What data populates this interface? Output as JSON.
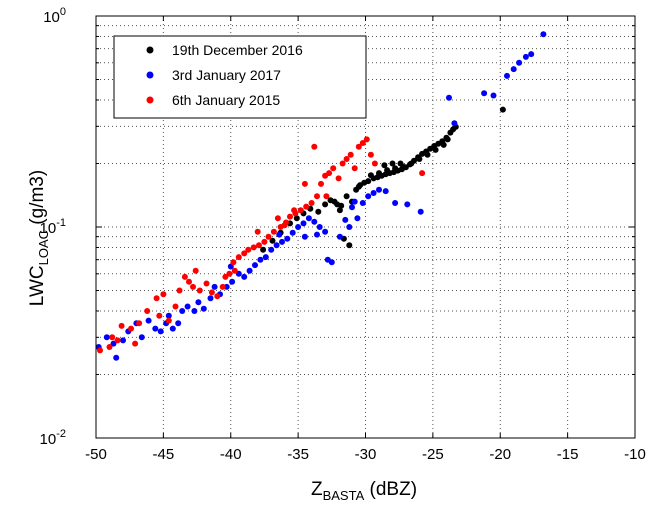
{
  "chart_data": {
    "type": "scatter",
    "title": "",
    "xlabel": {
      "main": "Z",
      "sub": "BASTA",
      "suffix": " (dBZ)"
    },
    "ylabel": {
      "main": "LWC",
      "sub": "LOAC",
      "suffix": " (g/m3)"
    },
    "xlim": [
      -50,
      -10
    ],
    "ylim": [
      0.01,
      1
    ],
    "yscale": "log",
    "grid": true,
    "legend_position": "top-left",
    "x_ticks": [
      "-50",
      "-45",
      "-40",
      "-35",
      "-30",
      "-25",
      "-20",
      "-15",
      "-10"
    ],
    "y_ticks": [
      {
        "base": "10",
        "exp": "-2"
      },
      {
        "base": "10",
        "exp": "-1"
      },
      {
        "base": "10",
        "exp": "0"
      }
    ],
    "series": [
      {
        "name": "19th December 2016",
        "color": "#000000",
        "points": [
          [
            -37.6,
            0.078
          ],
          [
            -36.9,
            0.086
          ],
          [
            -36.3,
            0.094
          ],
          [
            -35.6,
            0.104
          ],
          [
            -35.1,
            0.11
          ],
          [
            -34.6,
            0.116
          ],
          [
            -34.1,
            0.122
          ],
          [
            -33.5,
            0.118
          ],
          [
            -33.0,
            0.128
          ],
          [
            -32.6,
            0.134
          ],
          [
            -32.1,
            0.128
          ],
          [
            -31.8,
            0.126
          ],
          [
            -31.4,
            0.14
          ],
          [
            -31.0,
            0.132
          ],
          [
            -31.6,
            0.088
          ],
          [
            -31.2,
            0.082
          ],
          [
            -30.7,
            0.15
          ],
          [
            -30.4,
            0.158
          ],
          [
            -30.1,
            0.162
          ],
          [
            -29.8,
            0.165
          ],
          [
            -29.4,
            0.17
          ],
          [
            -29.1,
            0.172
          ],
          [
            -28.8,
            0.175
          ],
          [
            -28.5,
            0.178
          ],
          [
            -28.2,
            0.18
          ],
          [
            -27.9,
            0.182
          ],
          [
            -27.6,
            0.185
          ],
          [
            -27.3,
            0.188
          ],
          [
            -27.0,
            0.192
          ],
          [
            -26.7,
            0.198
          ],
          [
            -26.4,
            0.206
          ],
          [
            -26.1,
            0.214
          ],
          [
            -25.8,
            0.222
          ],
          [
            -25.5,
            0.228
          ],
          [
            -25.2,
            0.235
          ],
          [
            -24.9,
            0.242
          ],
          [
            -24.6,
            0.248
          ],
          [
            -24.3,
            0.255
          ],
          [
            -24.0,
            0.265
          ],
          [
            -23.7,
            0.28
          ],
          [
            -23.5,
            0.29
          ],
          [
            -23.3,
            0.298
          ],
          [
            -29.6,
            0.176
          ],
          [
            -29.0,
            0.18
          ],
          [
            -28.4,
            0.186
          ],
          [
            -27.8,
            0.19
          ],
          [
            -27.2,
            0.193
          ],
          [
            -26.6,
            0.2
          ],
          [
            -26.0,
            0.21
          ],
          [
            -25.4,
            0.22
          ],
          [
            -24.8,
            0.232
          ],
          [
            -24.2,
            0.245
          ],
          [
            -23.9,
            0.26
          ],
          [
            -28.6,
            0.196
          ],
          [
            -28.0,
            0.2
          ],
          [
            -27.4,
            0.2
          ],
          [
            -30.5,
            0.155
          ],
          [
            -31.9,
            0.12
          ],
          [
            -32.3,
            0.132
          ],
          [
            -19.8,
            0.36
          ]
        ]
      },
      {
        "name": "3rd January 2017",
        "color": "#0000ff",
        "points": [
          [
            -49.8,
            0.027
          ],
          [
            -49.2,
            0.03
          ],
          [
            -48.7,
            0.028
          ],
          [
            -48.5,
            0.024
          ],
          [
            -48.0,
            0.029
          ],
          [
            -47.6,
            0.032
          ],
          [
            -47.0,
            0.035
          ],
          [
            -46.6,
            0.03
          ],
          [
            -46.1,
            0.036
          ],
          [
            -45.6,
            0.033
          ],
          [
            -45.2,
            0.032
          ],
          [
            -44.8,
            0.035
          ],
          [
            -44.3,
            0.033
          ],
          [
            -43.9,
            0.035
          ],
          [
            -43.6,
            0.04
          ],
          [
            -43.2,
            0.042
          ],
          [
            -42.7,
            0.04
          ],
          [
            -42.4,
            0.044
          ],
          [
            -42.0,
            0.041
          ],
          [
            -41.5,
            0.046
          ],
          [
            -41.2,
            0.052
          ],
          [
            -40.8,
            0.048
          ],
          [
            -40.3,
            0.052
          ],
          [
            -39.9,
            0.055
          ],
          [
            -39.4,
            0.06
          ],
          [
            -39.0,
            0.058
          ],
          [
            -38.6,
            0.062
          ],
          [
            -38.2,
            0.066
          ],
          [
            -37.8,
            0.07
          ],
          [
            -37.4,
            0.072
          ],
          [
            -37.0,
            0.078
          ],
          [
            -36.6,
            0.082
          ],
          [
            -36.2,
            0.085
          ],
          [
            -35.8,
            0.088
          ],
          [
            -35.4,
            0.094
          ],
          [
            -35.0,
            0.1
          ],
          [
            -34.6,
            0.104
          ],
          [
            -34.2,
            0.11
          ],
          [
            -33.8,
            0.106
          ],
          [
            -33.4,
            0.1
          ],
          [
            -33.0,
            0.095
          ],
          [
            -32.8,
            0.07
          ],
          [
            -32.5,
            0.068
          ],
          [
            -31.9,
            0.09
          ],
          [
            -31.5,
            0.108
          ],
          [
            -31.2,
            0.1
          ],
          [
            -30.6,
            0.11
          ],
          [
            -30.2,
            0.13
          ],
          [
            -29.8,
            0.14
          ],
          [
            -29.4,
            0.145
          ],
          [
            -29.0,
            0.15
          ],
          [
            -28.5,
            0.148
          ],
          [
            -27.8,
            0.13
          ],
          [
            -26.9,
            0.128
          ],
          [
            -25.9,
            0.118
          ],
          [
            -31.0,
            0.124
          ],
          [
            -30.8,
            0.132
          ],
          [
            -33.6,
            0.092
          ],
          [
            -34.5,
            0.09
          ],
          [
            -23.8,
            0.41
          ],
          [
            -23.4,
            0.31
          ],
          [
            -21.2,
            0.43
          ],
          [
            -20.5,
            0.42
          ],
          [
            -19.5,
            0.52
          ],
          [
            -19.0,
            0.56
          ],
          [
            -18.6,
            0.6
          ],
          [
            -18.1,
            0.64
          ],
          [
            -17.7,
            0.66
          ],
          [
            -16.8,
            0.82
          ],
          [
            -44.6,
            0.038
          ],
          [
            -40.0,
            0.065
          ],
          [
            -36.4,
            0.092
          ]
        ]
      },
      {
        "name": "6th January 2015",
        "color": "#ff0000",
        "points": [
          [
            -49.7,
            0.026
          ],
          [
            -49.0,
            0.027
          ],
          [
            -48.4,
            0.029
          ],
          [
            -48.1,
            0.034
          ],
          [
            -47.4,
            0.033
          ],
          [
            -46.8,
            0.035
          ],
          [
            -46.2,
            0.04
          ],
          [
            -45.5,
            0.046
          ],
          [
            -45.0,
            0.048
          ],
          [
            -44.6,
            0.036
          ],
          [
            -44.1,
            0.042
          ],
          [
            -43.8,
            0.05
          ],
          [
            -43.4,
            0.058
          ],
          [
            -43.1,
            0.055
          ],
          [
            -42.8,
            0.052
          ],
          [
            -42.3,
            0.05
          ],
          [
            -41.8,
            0.054
          ],
          [
            -41.4,
            0.049
          ],
          [
            -41.0,
            0.047
          ],
          [
            -40.6,
            0.052
          ],
          [
            -40.1,
            0.06
          ],
          [
            -39.8,
            0.068
          ],
          [
            -39.4,
            0.072
          ],
          [
            -39.0,
            0.075
          ],
          [
            -38.7,
            0.078
          ],
          [
            -38.3,
            0.08
          ],
          [
            -37.9,
            0.082
          ],
          [
            -37.5,
            0.085
          ],
          [
            -37.2,
            0.09
          ],
          [
            -36.8,
            0.095
          ],
          [
            -36.3,
            0.1
          ],
          [
            -35.9,
            0.105
          ],
          [
            -35.6,
            0.112
          ],
          [
            -35.2,
            0.116
          ],
          [
            -34.8,
            0.12
          ],
          [
            -34.4,
            0.125
          ],
          [
            -34.0,
            0.13
          ],
          [
            -33.6,
            0.14
          ],
          [
            -33.3,
            0.16
          ],
          [
            -33.0,
            0.175
          ],
          [
            -32.7,
            0.18
          ],
          [
            -32.4,
            0.19
          ],
          [
            -32.0,
            0.17
          ],
          [
            -31.7,
            0.2
          ],
          [
            -31.4,
            0.21
          ],
          [
            -31.1,
            0.22
          ],
          [
            -30.8,
            0.19
          ],
          [
            -30.5,
            0.24
          ],
          [
            -30.2,
            0.25
          ],
          [
            -29.9,
            0.26
          ],
          [
            -29.6,
            0.22
          ],
          [
            -29.3,
            0.2
          ],
          [
            -33.8,
            0.24
          ],
          [
            -34.5,
            0.16
          ],
          [
            -35.3,
            0.12
          ],
          [
            -36.5,
            0.11
          ],
          [
            -38.0,
            0.095
          ],
          [
            -39.7,
            0.062
          ],
          [
            -42.6,
            0.062
          ],
          [
            -45.3,
            0.038
          ],
          [
            -47.1,
            0.028
          ],
          [
            -48.8,
            0.03
          ],
          [
            -25.8,
            0.18
          ],
          [
            -32.9,
            0.14
          ],
          [
            -36.0,
            0.102
          ],
          [
            -40.4,
            0.058
          ]
        ]
      }
    ]
  }
}
